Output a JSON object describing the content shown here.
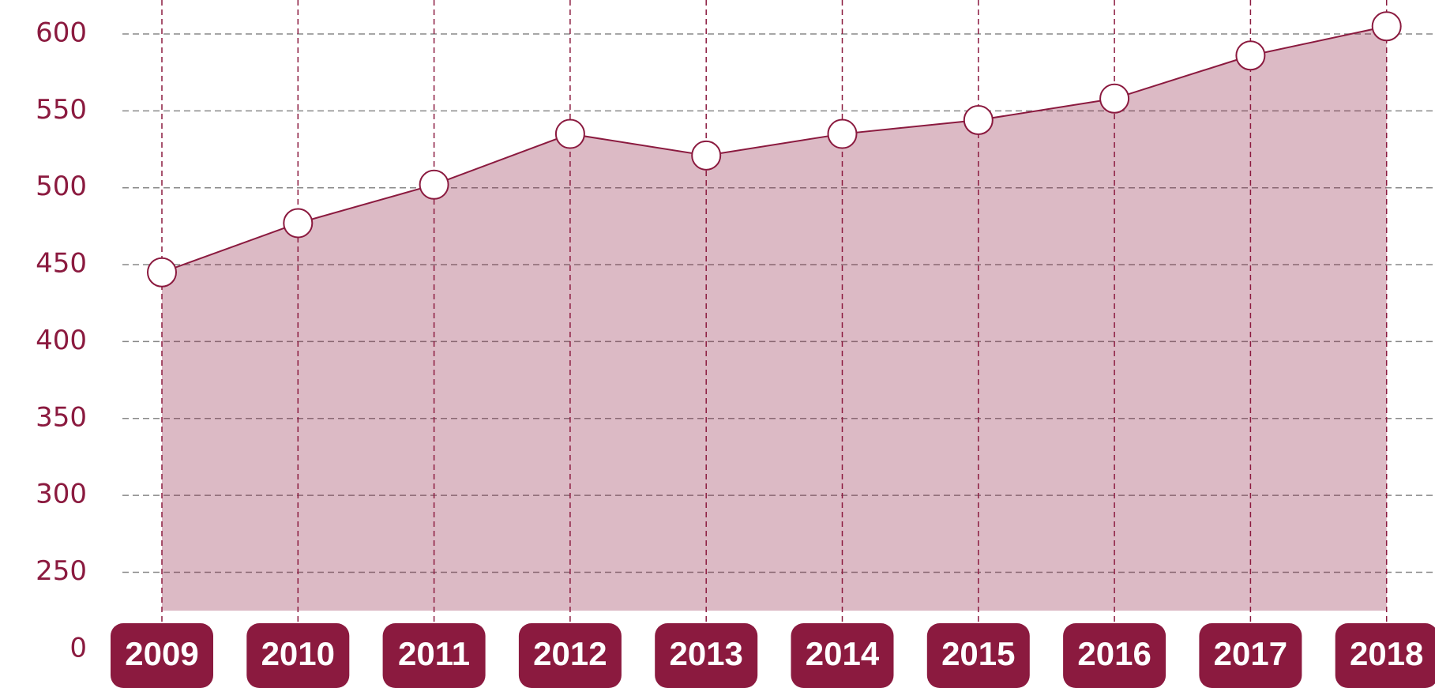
{
  "chart_data": {
    "type": "area",
    "categories": [
      "2009",
      "2010",
      "2011",
      "2012",
      "2013",
      "2014",
      "2015",
      "2016",
      "2017",
      "2018"
    ],
    "values": [
      445,
      477,
      502,
      535,
      521,
      535,
      544,
      558,
      586,
      605
    ],
    "color": "#8b1a3f",
    "ylim": [
      0,
      620
    ],
    "yticks": [
      0,
      250,
      300,
      350,
      400,
      450,
      500,
      550,
      600
    ],
    "grid": true
  }
}
